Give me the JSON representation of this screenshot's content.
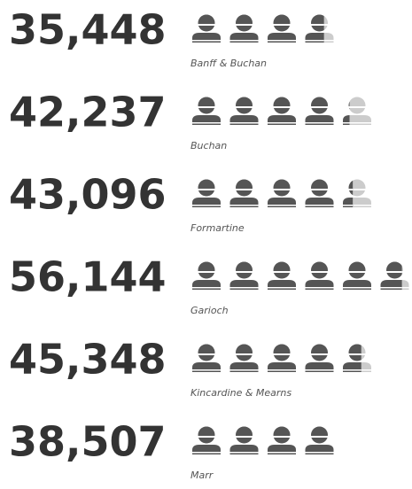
{
  "chart_data": {
    "type": "pictogram",
    "categories": [
      "Banff & Buchan",
      "Buchan",
      "Formartine",
      "Garioch",
      "Kincardine & Mearns",
      "Marr"
    ],
    "values": [
      35448,
      42237,
      43096,
      56144,
      45348,
      38507
    ],
    "value_labels": [
      "35,448",
      "42,237",
      "43,096",
      "56,144",
      "45,348",
      "38,507"
    ],
    "color": "#555555",
    "remainder_color": "#cccccc"
  }
}
